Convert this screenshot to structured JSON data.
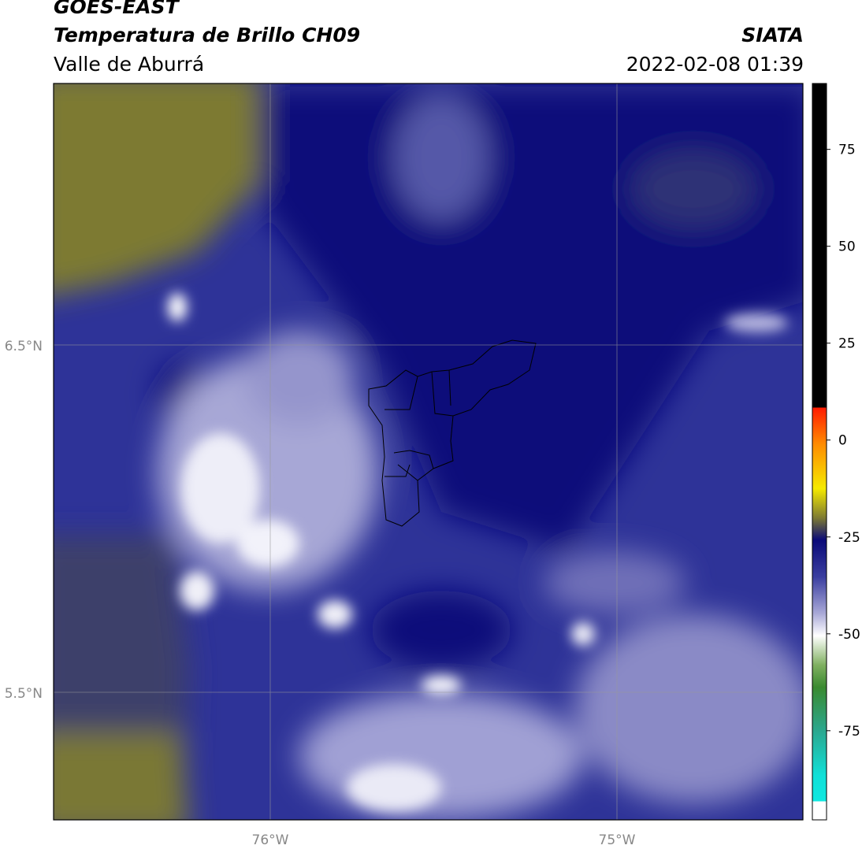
{
  "header": {
    "title": "GOES-EAST",
    "subtitle": "Temperatura de Brillo CH09",
    "region": "Valle de Aburrá",
    "source": "SIATA",
    "datetime": "2022-02-08 01:39"
  },
  "map": {
    "lat_labels": [
      "6.5°N",
      "5.5°N"
    ],
    "lon_labels": [
      "76°W",
      "75°W"
    ]
  },
  "colorbar": {
    "lim": [
      -98,
      92
    ],
    "ticks": [
      75,
      50,
      25,
      0,
      -25,
      -50,
      -75
    ]
  }
}
